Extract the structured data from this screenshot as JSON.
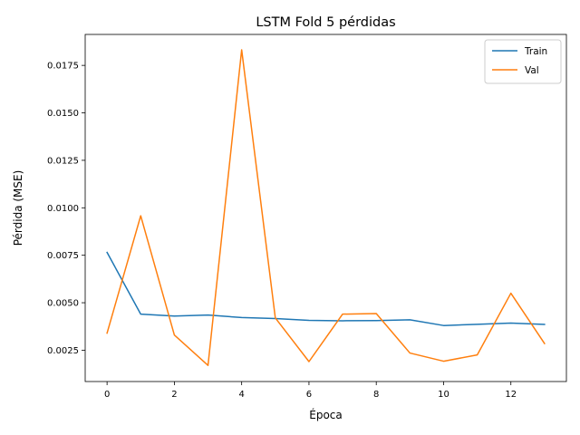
{
  "chart_data": {
    "type": "line",
    "title": "LSTM Fold 5 pérdidas",
    "xlabel": "Época",
    "ylabel": "Pérdida (MSE)",
    "xlim": [
      -0.65,
      13.65
    ],
    "ylim": [
      0.00085,
      0.01913
    ],
    "x_ticks": [
      0,
      2,
      4,
      6,
      8,
      10,
      12
    ],
    "x_tick_labels": [
      "0",
      "2",
      "4",
      "6",
      "8",
      "10",
      "12"
    ],
    "y_ticks": [
      0.0025,
      0.005,
      0.0075,
      0.01,
      0.0125,
      0.015,
      0.0175
    ],
    "y_tick_labels": [
      "0.0025",
      "0.0050",
      "0.0075",
      "0.0100",
      "0.0125",
      "0.0150",
      "0.0175"
    ],
    "grid": false,
    "legend_position": "top-right",
    "x": [
      0,
      1,
      2,
      3,
      4,
      5,
      6,
      7,
      8,
      9,
      10,
      11,
      12,
      13
    ],
    "series": [
      {
        "name": "Train",
        "color": "#1f77b4",
        "values": [
          0.00765,
          0.0044,
          0.0043,
          0.00435,
          0.00422,
          0.00417,
          0.00407,
          0.00405,
          0.00406,
          0.0041,
          0.0038,
          0.00386,
          0.00393,
          0.00386
        ]
      },
      {
        "name": "Val",
        "color": "#ff7f0e",
        "values": [
          0.0034,
          0.00958,
          0.0033,
          0.0017,
          0.01832,
          0.0042,
          0.0019,
          0.0044,
          0.00443,
          0.00235,
          0.00192,
          0.00225,
          0.0055,
          0.00285
        ]
      }
    ]
  }
}
